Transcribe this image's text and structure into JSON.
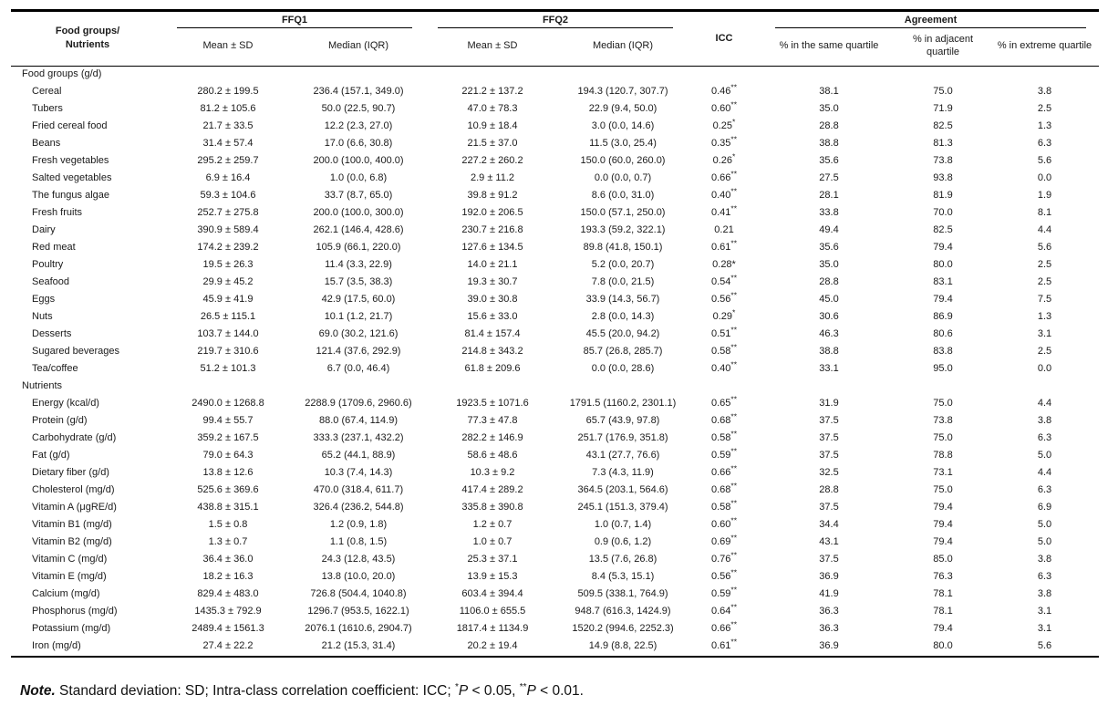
{
  "table": {
    "headers": {
      "food_groups": "Food groups/\nNutrients",
      "ffq1": "FFQ1",
      "ffq2": "FFQ2",
      "icc": "ICC",
      "agreement": "Agreement",
      "ffq1_mean_sd": "Mean ± SD",
      "ffq1_median_iqr": "Median (IQR)",
      "ffq2_mean_sd": "Mean ± SD",
      "ffq2_median_iqr": "Median (IQR)",
      "same_quartile": "% in the same quartile",
      "adjacent_quartile": "% in adjacent quartile",
      "extreme_quartile": "% in extreme quartile"
    },
    "sections": [
      {
        "label": "Food groups (g/d)",
        "rows": [
          {
            "name": "Cereal",
            "ffq1_mean": "280.2 ± 199.5",
            "ffq1_median": "236.4 (157.1, 349.0)",
            "ffq2_mean": "221.2 ± 137.2",
            "ffq2_median": "194.3 (120.7, 307.7)",
            "icc": "0.46",
            "icc_sup": "**",
            "same": "38.1",
            "adjacent": "75.0",
            "extreme": "3.8"
          },
          {
            "name": "Tubers",
            "ffq1_mean": "81.2 ± 105.6",
            "ffq1_median": "50.0 (22.5, 90.7)",
            "ffq2_mean": "47.0 ± 78.3",
            "ffq2_median": "22.9 (9.4, 50.0)",
            "icc": "0.60",
            "icc_sup": "**",
            "same": "35.0",
            "adjacent": "71.9",
            "extreme": "2.5"
          },
          {
            "name": "Fried cereal food",
            "ffq1_mean": "21.7 ± 33.5",
            "ffq1_median": "12.2 (2.3, 27.0)",
            "ffq2_mean": "10.9 ± 18.4",
            "ffq2_median": "3.0 (0.0, 14.6)",
            "icc": "0.25",
            "icc_sup": "*",
            "same": "28.8",
            "adjacent": "82.5",
            "extreme": "1.3"
          },
          {
            "name": "Beans",
            "ffq1_mean": "31.4 ± 57.4",
            "ffq1_median": "17.0 (6.6, 30.8)",
            "ffq2_mean": "21.5 ± 37.0",
            "ffq2_median": "11.5 (3.0, 25.4)",
            "icc": "0.35",
            "icc_sup": "**",
            "same": "38.8",
            "adjacent": "81.3",
            "extreme": "6.3"
          },
          {
            "name": "Fresh vegetables",
            "ffq1_mean": "295.2 ± 259.7",
            "ffq1_median": "200.0 (100.0, 400.0)",
            "ffq2_mean": "227.2 ± 260.2",
            "ffq2_median": "150.0 (60.0, 260.0)",
            "icc": "0.26",
            "icc_sup": "*",
            "same": "35.6",
            "adjacent": "73.8",
            "extreme": "5.6"
          },
          {
            "name": "Salted vegetables",
            "ffq1_mean": "6.9 ± 16.4",
            "ffq1_median": "1.0 (0.0, 6.8)",
            "ffq2_mean": "2.9 ± 11.2",
            "ffq2_median": "0.0 (0.0, 0.7)",
            "icc": "0.66",
            "icc_sup": "**",
            "same": "27.5",
            "adjacent": "93.8",
            "extreme": "0.0"
          },
          {
            "name": "The fungus algae",
            "ffq1_mean": "59.3 ± 104.6",
            "ffq1_median": "33.7 (8.7, 65.0)",
            "ffq2_mean": "39.8 ± 91.2",
            "ffq2_median": "8.6 (0.0, 31.0)",
            "icc": "0.40",
            "icc_sup": "**",
            "same": "28.1",
            "adjacent": "81.9",
            "extreme": "1.9"
          },
          {
            "name": "Fresh fruits",
            "ffq1_mean": "252.7 ± 275.8",
            "ffq1_median": "200.0 (100.0, 300.0)",
            "ffq2_mean": "192.0 ± 206.5",
            "ffq2_median": "150.0 (57.1, 250.0)",
            "icc": "0.41",
            "icc_sup": "**",
            "same": "33.8",
            "adjacent": "70.0",
            "extreme": "8.1"
          },
          {
            "name": "Dairy",
            "ffq1_mean": "390.9 ± 589.4",
            "ffq1_median": "262.1 (146.4, 428.6)",
            "ffq2_mean": "230.7 ± 216.8",
            "ffq2_median": "193.3 (59.2, 322.1)",
            "icc": "0.21",
            "icc_sup": "",
            "same": "49.4",
            "adjacent": "82.5",
            "extreme": "4.4"
          },
          {
            "name": "Red meat",
            "ffq1_mean": "174.2 ± 239.2",
            "ffq1_median": "105.9 (66.1, 220.0)",
            "ffq2_mean": "127.6 ± 134.5",
            "ffq2_median": "89.8 (41.8, 150.1)",
            "icc": "0.61",
            "icc_sup": "**",
            "same": "35.6",
            "adjacent": "79.4",
            "extreme": "5.6"
          },
          {
            "name": "Poultry",
            "ffq1_mean": "19.5 ± 26.3",
            "ffq1_median": "11.4 (3.3, 22.9)",
            "ffq2_mean": "14.0 ± 21.1",
            "ffq2_median": "5.2 (0.0, 20.7)",
            "icc": "0.28*",
            "icc_sup": "",
            "same": "35.0",
            "adjacent": "80.0",
            "extreme": "2.5"
          },
          {
            "name": "Seafood",
            "ffq1_mean": "29.9 ± 45.2",
            "ffq1_median": "15.7 (3.5, 38.3)",
            "ffq2_mean": "19.3 ± 30.7",
            "ffq2_median": "7.8 (0.0, 21.5)",
            "icc": "0.54",
            "icc_sup": "**",
            "same": "28.8",
            "adjacent": "83.1",
            "extreme": "2.5"
          },
          {
            "name": "Eggs",
            "ffq1_mean": "45.9 ± 41.9",
            "ffq1_median": "42.9 (17.5, 60.0)",
            "ffq2_mean": "39.0 ± 30.8",
            "ffq2_median": "33.9 (14.3, 56.7)",
            "icc": "0.56",
            "icc_sup": "**",
            "same": "45.0",
            "adjacent": "79.4",
            "extreme": "7.5"
          },
          {
            "name": "Nuts",
            "ffq1_mean": "26.5 ± 115.1",
            "ffq1_median": "10.1 (1.2, 21.7)",
            "ffq2_mean": "15.6 ± 33.0",
            "ffq2_median": "2.8 (0.0, 14.3)",
            "icc": "0.29",
            "icc_sup": "*",
            "same": "30.6",
            "adjacent": "86.9",
            "extreme": "1.3"
          },
          {
            "name": "Desserts",
            "ffq1_mean": "103.7 ± 144.0",
            "ffq1_median": "69.0 (30.2, 121.6)",
            "ffq2_mean": "81.4 ± 157.4",
            "ffq2_median": "45.5 (20.0, 94.2)",
            "icc": "0.51",
            "icc_sup": "**",
            "same": "46.3",
            "adjacent": "80.6",
            "extreme": "3.1"
          },
          {
            "name": "Sugared beverages",
            "ffq1_mean": "219.7 ± 310.6",
            "ffq1_median": "121.4 (37.6, 292.9)",
            "ffq2_mean": "214.8 ± 343.2",
            "ffq2_median": "85.7 (26.8, 285.7)",
            "icc": "0.58",
            "icc_sup": "**",
            "same": "38.8",
            "adjacent": "83.8",
            "extreme": "2.5"
          },
          {
            "name": "Tea/coffee",
            "ffq1_mean": "51.2 ± 101.3",
            "ffq1_median": "6.7 (0.0, 46.4)",
            "ffq2_mean": "61.8 ± 209.6",
            "ffq2_median": "0.0 (0.0, 28.6)",
            "icc": "0.40",
            "icc_sup": "**",
            "same": "33.1",
            "adjacent": "95.0",
            "extreme": "0.0"
          }
        ]
      },
      {
        "label": "Nutrients",
        "rows": [
          {
            "name": "Energy (kcal/d)",
            "ffq1_mean": "2490.0 ± 1268.8",
            "ffq1_median": "2288.9 (1709.6, 2960.6)",
            "ffq2_mean": "1923.5 ± 1071.6",
            "ffq2_median": "1791.5 (1160.2, 2301.1)",
            "icc": "0.65",
            "icc_sup": "**",
            "same": "31.9",
            "adjacent": "75.0",
            "extreme": "4.4"
          },
          {
            "name": "Protein (g/d)",
            "ffq1_mean": "99.4 ± 55.7",
            "ffq1_median": "88.0 (67.4, 114.9)",
            "ffq2_mean": "77.3 ± 47.8",
            "ffq2_median": "65.7 (43.9, 97.8)",
            "icc": "0.68",
            "icc_sup": "**",
            "same": "37.5",
            "adjacent": "73.8",
            "extreme": "3.8"
          },
          {
            "name": "Carbohydrate (g/d)",
            "ffq1_mean": "359.2 ± 167.5",
            "ffq1_median": "333.3 (237.1, 432.2)",
            "ffq2_mean": "282.2 ± 146.9",
            "ffq2_median": "251.7 (176.9, 351.8)",
            "icc": "0.58",
            "icc_sup": "**",
            "same": "37.5",
            "adjacent": "75.0",
            "extreme": "6.3"
          },
          {
            "name": "Fat (g/d)",
            "ffq1_mean": "79.0 ± 64.3",
            "ffq1_median": "65.2 (44.1, 88.9)",
            "ffq2_mean": "58.6 ± 48.6",
            "ffq2_median": "43.1 (27.7, 76.6)",
            "icc": "0.59",
            "icc_sup": "**",
            "same": "37.5",
            "adjacent": "78.8",
            "extreme": "5.0"
          },
          {
            "name": "Dietary fiber (g/d)",
            "ffq1_mean": "13.8 ± 12.6",
            "ffq1_median": "10.3 (7.4, 14.3)",
            "ffq2_mean": "10.3 ± 9.2",
            "ffq2_median": "7.3 (4.3, 11.9)",
            "icc": "0.66",
            "icc_sup": "**",
            "same": "32.5",
            "adjacent": "73.1",
            "extreme": "4.4"
          },
          {
            "name": "Cholesterol (mg/d)",
            "ffq1_mean": "525.6 ± 369.6",
            "ffq1_median": "470.0 (318.4, 611.7)",
            "ffq2_mean": "417.4 ± 289.2",
            "ffq2_median": "364.5 (203.1, 564.6)",
            "icc": "0.68",
            "icc_sup": "**",
            "same": "28.8",
            "adjacent": "75.0",
            "extreme": "6.3"
          },
          {
            "name": "Vitamin A (μgRE/d)",
            "ffq1_mean": "438.8 ± 315.1",
            "ffq1_median": "326.4 (236.2, 544.8)",
            "ffq2_mean": "335.8 ± 390.8",
            "ffq2_median": "245.1 (151.3, 379.4)",
            "icc": "0.58",
            "icc_sup": "**",
            "same": "37.5",
            "adjacent": "79.4",
            "extreme": "6.9"
          },
          {
            "name": "Vitamin B1 (mg/d)",
            "ffq1_mean": "1.5 ± 0.8",
            "ffq1_median": "1.2 (0.9, 1.8)",
            "ffq2_mean": "1.2 ± 0.7",
            "ffq2_median": "1.0 (0.7, 1.4)",
            "icc": "0.60",
            "icc_sup": "**",
            "same": "34.4",
            "adjacent": "79.4",
            "extreme": "5.0"
          },
          {
            "name": "Vitamin B2 (mg/d)",
            "ffq1_mean": "1.3 ± 0.7",
            "ffq1_median": "1.1 (0.8, 1.5)",
            "ffq2_mean": "1.0 ± 0.7",
            "ffq2_median": "0.9 (0.6, 1.2)",
            "icc": "0.69",
            "icc_sup": "**",
            "same": "43.1",
            "adjacent": "79.4",
            "extreme": "5.0"
          },
          {
            "name": "Vitamin C (mg/d)",
            "ffq1_mean": "36.4 ± 36.0",
            "ffq1_median": "24.3 (12.8, 43.5)",
            "ffq2_mean": "25.3 ± 37.1",
            "ffq2_median": "13.5 (7.6, 26.8)",
            "icc": "0.76",
            "icc_sup": "**",
            "same": "37.5",
            "adjacent": "85.0",
            "extreme": "3.8"
          },
          {
            "name": "Vitamin E (mg/d)",
            "ffq1_mean": "18.2 ± 16.3",
            "ffq1_median": "13.8 (10.0, 20.0)",
            "ffq2_mean": "13.9 ± 15.3",
            "ffq2_median": "8.4 (5.3, 15.1)",
            "icc": "0.56",
            "icc_sup": "**",
            "same": "36.9",
            "adjacent": "76.3",
            "extreme": "6.3"
          },
          {
            "name": "Calcium (mg/d)",
            "ffq1_mean": "829.4 ± 483.0",
            "ffq1_median": "726.8 (504.4, 1040.8)",
            "ffq2_mean": "603.4 ± 394.4",
            "ffq2_median": "509.5 (338.1, 764.9)",
            "icc": "0.59",
            "icc_sup": "**",
            "same": "41.9",
            "adjacent": "78.1",
            "extreme": "3.8"
          },
          {
            "name": "Phosphorus (mg/d)",
            "ffq1_mean": "1435.3 ± 792.9",
            "ffq1_median": "1296.7 (953.5, 1622.1)",
            "ffq2_mean": "1106.0 ± 655.5",
            "ffq2_median": "948.7 (616.3, 1424.9)",
            "icc": "0.64",
            "icc_sup": "**",
            "same": "36.3",
            "adjacent": "78.1",
            "extreme": "3.1"
          },
          {
            "name": "Potassium (mg/d)",
            "ffq1_mean": "2489.4 ± 1561.3",
            "ffq1_median": "2076.1 (1610.6, 2904.7)",
            "ffq2_mean": "1817.4 ± 1134.9",
            "ffq2_median": "1520.2 (994.6, 2252.3)",
            "icc": "0.66",
            "icc_sup": "**",
            "same": "36.3",
            "adjacent": "79.4",
            "extreme": "3.1"
          },
          {
            "name": "Iron (mg/d)",
            "ffq1_mean": "27.4 ± 22.2",
            "ffq1_median": "21.2 (15.3, 31.4)",
            "ffq2_mean": "20.2 ± 19.4",
            "ffq2_median": "14.9 (8.8, 22.5)",
            "icc": "0.61",
            "icc_sup": "**",
            "same": "36.9",
            "adjacent": "80.0",
            "extreme": "5.6"
          }
        ]
      }
    ]
  },
  "note": {
    "label": "Note.",
    "body": " Standard deviation: SD; Intra-class correlation coefficient: ICC; ",
    "sig1_sup": "*",
    "sig1_p": "P",
    "sig1_rest": " < 0.05, ",
    "sig2_sup": "**",
    "sig2_p": "P",
    "sig2_rest": " < 0.01."
  }
}
